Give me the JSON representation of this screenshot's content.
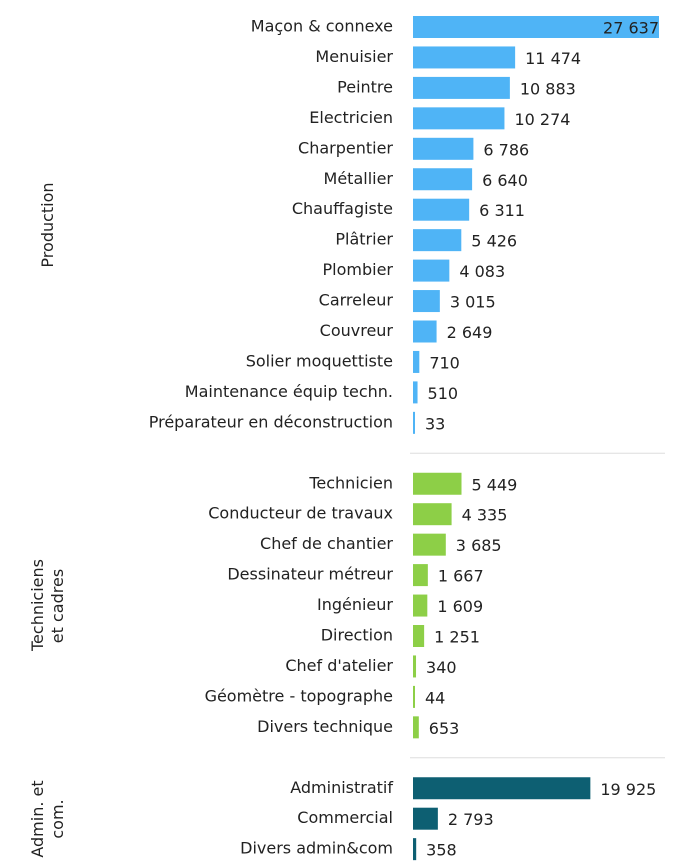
{
  "chart_data": {
    "type": "bar",
    "groups": [
      {
        "name": "Production",
        "color": "#4fb4f6",
        "categories": [
          "Maçon & connexe",
          "Menuisier",
          "Peintre",
          "Electricien",
          "Charpentier",
          "Métallier",
          "Chauffagiste",
          "Plâtrier",
          "Plombier",
          "Carreleur",
          "Couvreur",
          "Solier moquettiste",
          "Maintenance équip techn.",
          "Préparateur en déconstruction"
        ],
        "values": [
          27637,
          11474,
          10883,
          10274,
          6786,
          6640,
          6311,
          5426,
          4083,
          3015,
          2649,
          710,
          510,
          33
        ],
        "value_labels": [
          "27 637",
          "11 474",
          "10 883",
          "10 274",
          "6 786",
          "6 640",
          "6 311",
          "5 426",
          "4 083",
          "3 015",
          "2 649",
          "710",
          "510",
          "33"
        ]
      },
      {
        "name": "Techniciens et cadres",
        "color": "#8dcf47",
        "categories": [
          "Technicien",
          "Conducteur de travaux",
          "Chef de chantier",
          "Dessinateur métreur",
          "Ingénieur",
          "Direction",
          "Chef d'atelier",
          "Géomètre - topographe",
          "Divers technique"
        ],
        "values": [
          5449,
          4335,
          3685,
          1667,
          1609,
          1251,
          340,
          44,
          653
        ],
        "value_labels": [
          "5 449",
          "4 335",
          "3 685",
          "1 667",
          "1 609",
          "1 251",
          "340",
          "44",
          "653"
        ]
      },
      {
        "name": "Admin. et com.",
        "color": "#0d5f72",
        "categories": [
          "Administratif",
          "Commercial",
          "Divers admin&com"
        ],
        "values": [
          19925,
          2793,
          358
        ],
        "value_labels": [
          "19 925",
          "2 793",
          "358"
        ]
      }
    ]
  }
}
